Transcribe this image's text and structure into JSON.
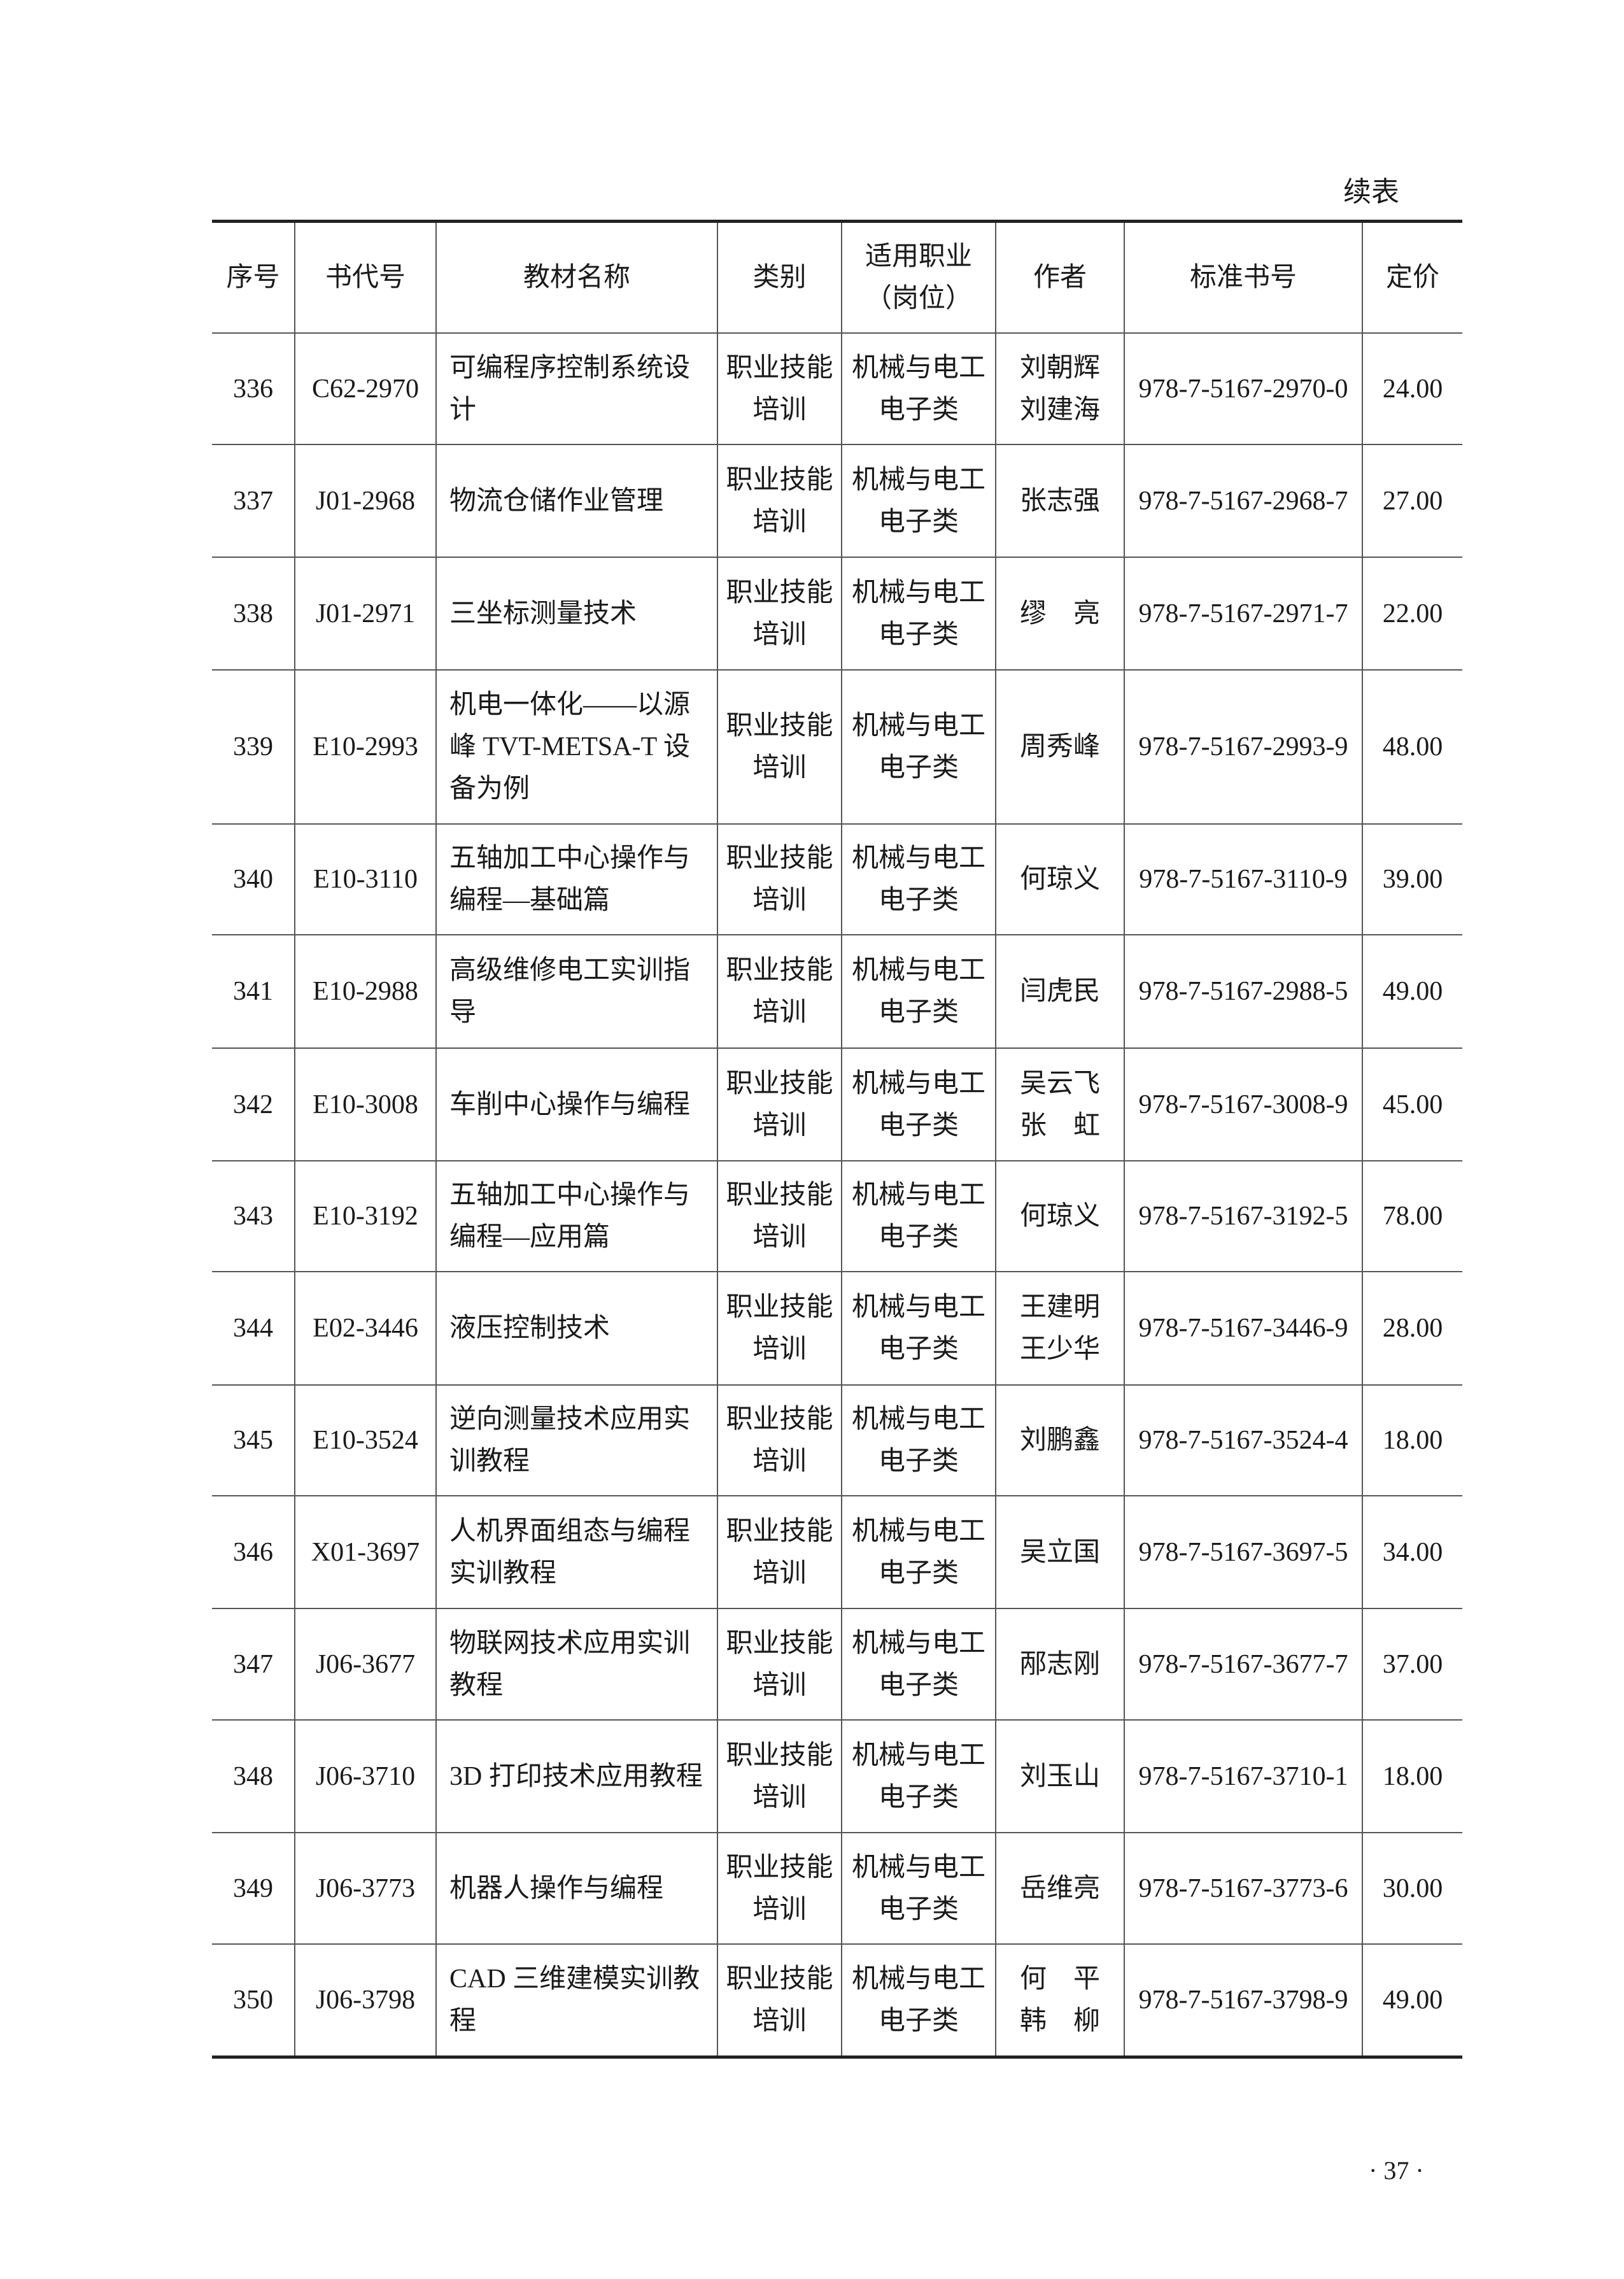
{
  "continued_label": "续表",
  "page_number": "· 37 ·",
  "table": {
    "headers": [
      "序号",
      "书代号",
      "教材名称",
      "类别",
      "适用职业\n（岗位）",
      "作者",
      "标准书号",
      "定价"
    ],
    "rows": [
      [
        "336",
        "C62-2970",
        "可编程序控制系统设计",
        "职业技能培训",
        "机械与电工电子类",
        "刘朝辉\n刘建海",
        "978-7-5167-2970-0",
        "24.00"
      ],
      [
        "337",
        "J01-2968",
        "物流仓储作业管理",
        "职业技能培训",
        "机械与电工电子类",
        "张志强",
        "978-7-5167-2968-7",
        "27.00"
      ],
      [
        "338",
        "J01-2971",
        "三坐标测量技术",
        "职业技能培训",
        "机械与电工电子类",
        "缪　亮",
        "978-7-5167-2971-7",
        "22.00"
      ],
      [
        "339",
        "E10-2993",
        "机电一体化——以源峰 TVT-METSA-T 设备为例",
        "职业技能培训",
        "机械与电工电子类",
        "周秀峰",
        "978-7-5167-2993-9",
        "48.00"
      ],
      [
        "340",
        "E10-3110",
        "五轴加工中心操作与编程—基础篇",
        "职业技能培训",
        "机械与电工电子类",
        "何琼义",
        "978-7-5167-3110-9",
        "39.00"
      ],
      [
        "341",
        "E10-2988",
        "高级维修电工实训指导",
        "职业技能培训",
        "机械与电工电子类",
        "闫虎民",
        "978-7-5167-2988-5",
        "49.00"
      ],
      [
        "342",
        "E10-3008",
        "车削中心操作与编程",
        "职业技能培训",
        "机械与电工电子类",
        "吴云飞\n张　虹",
        "978-7-5167-3008-9",
        "45.00"
      ],
      [
        "343",
        "E10-3192",
        "五轴加工中心操作与编程—应用篇",
        "职业技能培训",
        "机械与电工电子类",
        "何琼义",
        "978-7-5167-3192-5",
        "78.00"
      ],
      [
        "344",
        "E02-3446",
        "液压控制技术",
        "职业技能培训",
        "机械与电工电子类",
        "王建明\n王少华",
        "978-7-5167-3446-9",
        "28.00"
      ],
      [
        "345",
        "E10-3524",
        "逆向测量技术应用实训教程",
        "职业技能培训",
        "机械与电工电子类",
        "刘鹏鑫",
        "978-7-5167-3524-4",
        "18.00"
      ],
      [
        "346",
        "X01-3697",
        "人机界面组态与编程实训教程",
        "职业技能培训",
        "机械与电工电子类",
        "吴立国",
        "978-7-5167-3697-5",
        "34.00"
      ],
      [
        "347",
        "J06-3677",
        "物联网技术应用实训教程",
        "职业技能培训",
        "机械与电工电子类",
        "邴志刚",
        "978-7-5167-3677-7",
        "37.00"
      ],
      [
        "348",
        "J06-3710",
        "3D 打印技术应用教程",
        "职业技能培训",
        "机械与电工电子类",
        "刘玉山",
        "978-7-5167-3710-1",
        "18.00"
      ],
      [
        "349",
        "J06-3773",
        "机器人操作与编程",
        "职业技能培训",
        "机械与电工电子类",
        "岳维亮",
        "978-7-5167-3773-6",
        "30.00"
      ],
      [
        "350",
        "J06-3798",
        "CAD 三维建模实训教程",
        "职业技能培训",
        "机械与电工电子类",
        "何　平\n韩　柳",
        "978-7-5167-3798-9",
        "49.00"
      ]
    ]
  }
}
